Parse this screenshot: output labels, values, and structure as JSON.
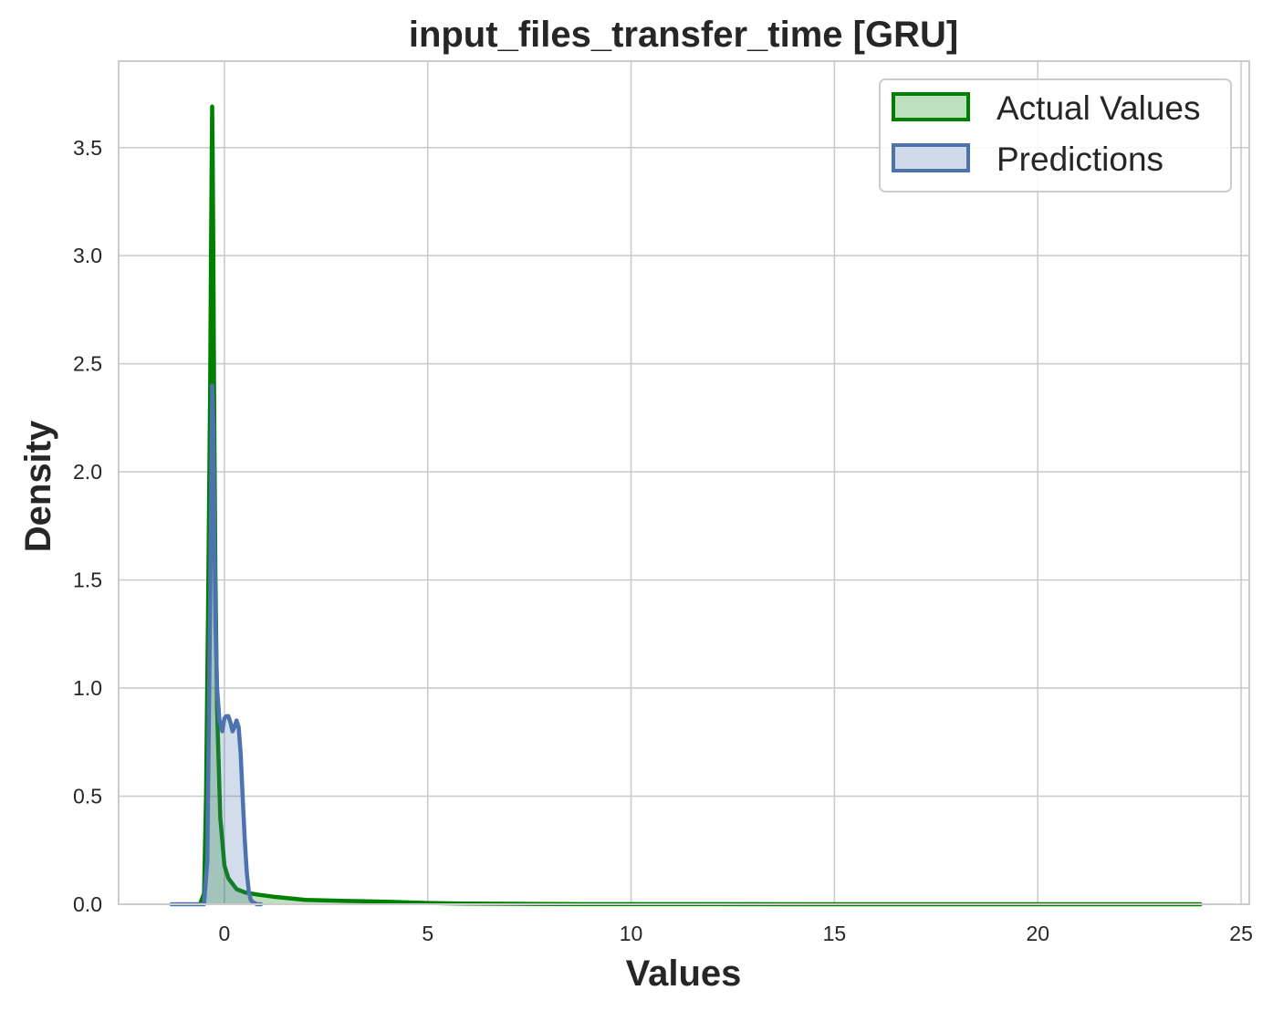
{
  "chart_data": {
    "type": "area",
    "title": "input_files_transfer_time [GRU]",
    "xlabel": "Values",
    "ylabel": "Density",
    "xlim": [
      -2.6,
      25.2
    ],
    "ylim": [
      0,
      3.9
    ],
    "xticks": [
      0,
      5,
      10,
      15,
      20,
      25
    ],
    "xtick_labels": [
      "0",
      "5",
      "10",
      "15",
      "20",
      "25"
    ],
    "yticks": [
      0,
      0.5,
      1.0,
      1.5,
      2.0,
      2.5,
      3.0,
      3.5
    ],
    "ytick_labels": [
      "0.0",
      "0.5",
      "1.0",
      "1.5",
      "2.0",
      "2.5",
      "3.0",
      "3.5"
    ],
    "grid": true,
    "legend_position": "top-right",
    "series": [
      {
        "name": "Actual Values",
        "color": "#008000",
        "fill": "#bfe0bf",
        "x": [
          -0.6,
          -0.5,
          -0.45,
          -0.4,
          -0.35,
          -0.33,
          -0.31,
          -0.3,
          -0.29,
          -0.27,
          -0.25,
          -0.22,
          -0.18,
          -0.1,
          0.0,
          0.1,
          0.3,
          0.5,
          0.8,
          1.2,
          2.0,
          3.0,
          4.0,
          5.0,
          6.0,
          8.0,
          10.0,
          15.0,
          20.0,
          24.0
        ],
        "values": [
          0.0,
          0.05,
          0.5,
          1.4,
          2.4,
          3.0,
          3.5,
          3.69,
          3.5,
          3.0,
          2.3,
          1.5,
          0.9,
          0.4,
          0.18,
          0.12,
          0.07,
          0.055,
          0.045,
          0.035,
          0.02,
          0.015,
          0.012,
          0.006,
          0.003,
          0.001,
          0.0005,
          0.0002,
          0.0001,
          0.0
        ]
      },
      {
        "name": "Predictions",
        "color": "#4c72b0",
        "fill": "#d0daea",
        "x": [
          -1.3,
          -0.5,
          -0.42,
          -0.35,
          -0.3,
          -0.27,
          -0.25,
          -0.22,
          -0.18,
          -0.12,
          -0.05,
          0.0,
          0.05,
          0.1,
          0.15,
          0.2,
          0.25,
          0.3,
          0.35,
          0.4,
          0.45,
          0.5,
          0.55,
          0.6,
          0.65,
          0.7,
          0.75,
          0.8,
          0.85,
          0.9
        ],
        "values": [
          0.0,
          0.0,
          0.2,
          1.4,
          2.4,
          2.2,
          1.8,
          1.3,
          1.0,
          0.85,
          0.8,
          0.86,
          0.87,
          0.87,
          0.84,
          0.8,
          0.82,
          0.85,
          0.82,
          0.7,
          0.5,
          0.3,
          0.15,
          0.06,
          0.02,
          0.01,
          0.005,
          0.0,
          0.0,
          0.0
        ]
      }
    ]
  }
}
